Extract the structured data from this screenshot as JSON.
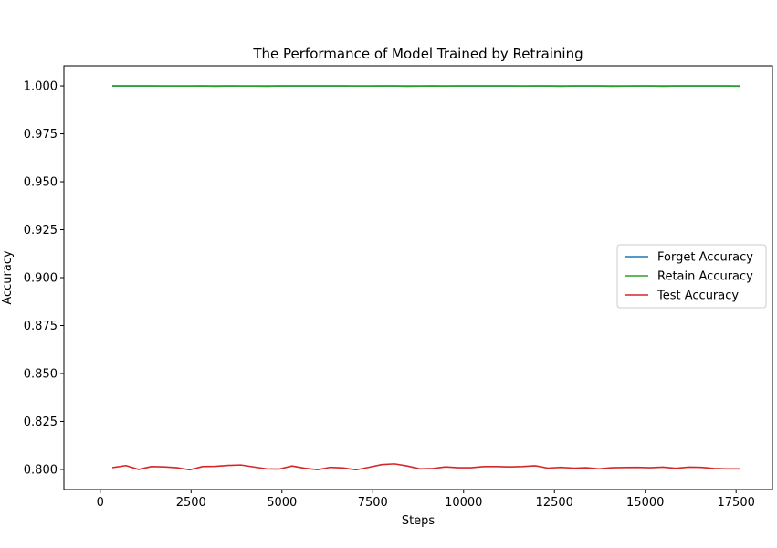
{
  "chart_data": {
    "type": "line",
    "title": "The Performance of Model Trained by Retraining",
    "xlabel": "Steps",
    "ylabel": "Accuracy",
    "xlim": [
      -1000,
      18500
    ],
    "ylim": [
      0.7895,
      1.0105
    ],
    "xticks": [
      0,
      2500,
      5000,
      7500,
      10000,
      12500,
      15000,
      17500
    ],
    "xtick_labels": [
      "0",
      "2500",
      "5000",
      "7500",
      "10000",
      "12500",
      "15000",
      "17500"
    ],
    "yticks": [
      0.8,
      0.825,
      0.85,
      0.875,
      0.9,
      0.925,
      0.95,
      0.975,
      1.0
    ],
    "ytick_labels": [
      "0.800",
      "0.825",
      "0.850",
      "0.875",
      "0.900",
      "0.925",
      "0.950",
      "0.975",
      "1.000"
    ],
    "grid": false,
    "legend_position": "center-right",
    "x": [
      352,
      704,
      1056,
      1408,
      1760,
      2112,
      2464,
      2816,
      3168,
      3520,
      3872,
      4224,
      4576,
      4928,
      5280,
      5632,
      5984,
      6336,
      6688,
      7040,
      7392,
      7744,
      8096,
      8448,
      8800,
      9152,
      9504,
      9856,
      10208,
      10560,
      10912,
      11264,
      11616,
      11968,
      12320,
      12672,
      13024,
      13376,
      13728,
      14080,
      14432,
      14784,
      15136,
      15488,
      15840,
      16192,
      16544,
      16896,
      17248,
      17600
    ],
    "series": [
      {
        "name": "Forget Accuracy",
        "color": "#1f77b4",
        "values": [
          1.0,
          1.0,
          1.0,
          1.0,
          1.0,
          1.0,
          1.0,
          1.0,
          1.0,
          1.0,
          1.0,
          1.0,
          1.0,
          1.0,
          1.0,
          1.0,
          1.0,
          1.0,
          1.0,
          1.0,
          1.0,
          1.0,
          1.0,
          1.0,
          1.0,
          1.0,
          1.0,
          1.0,
          1.0,
          1.0,
          1.0,
          1.0,
          1.0,
          1.0,
          1.0,
          1.0,
          1.0,
          1.0,
          1.0,
          1.0,
          1.0,
          1.0,
          1.0,
          1.0,
          1.0,
          1.0,
          1.0,
          1.0,
          1.0,
          1.0
        ]
      },
      {
        "name": "Retain Accuracy",
        "color": "#2ca02c",
        "values": [
          1.0,
          1.0,
          1.0,
          1.0,
          0.9999,
          0.9999,
          0.9999,
          1.0,
          0.9998,
          1.0,
          0.9999,
          0.9999,
          0.9998,
          1.0,
          1.0,
          1.0,
          1.0,
          1.0,
          1.0,
          0.9999,
          0.9999,
          1.0,
          1.0,
          0.9998,
          0.9999,
          1.0,
          0.9999,
          1.0,
          1.0,
          1.0,
          1.0,
          1.0,
          0.9999,
          1.0,
          1.0,
          0.9998,
          1.0,
          1.0,
          1.0,
          0.9998,
          0.9999,
          1.0,
          1.0,
          0.9998,
          1.0,
          1.0,
          1.0,
          1.0,
          1.0,
          0.9998
        ]
      },
      {
        "name": "Test Accuracy",
        "color": "#d62728",
        "values": [
          0.801,
          0.802,
          0.8,
          0.8015,
          0.8013,
          0.8009,
          0.7998,
          0.8015,
          0.8016,
          0.8021,
          0.8023,
          0.8013,
          0.8003,
          0.8002,
          0.8018,
          0.8006,
          0.7999,
          0.8011,
          0.8008,
          0.7998,
          0.8011,
          0.8025,
          0.8029,
          0.8018,
          0.8003,
          0.8005,
          0.8013,
          0.8009,
          0.8009,
          0.8015,
          0.8015,
          0.8013,
          0.8015,
          0.8019,
          0.8007,
          0.8011,
          0.8007,
          0.8009,
          0.8003,
          0.8009,
          0.801,
          0.8011,
          0.8009,
          0.8012,
          0.8006,
          0.8012,
          0.8011,
          0.8005,
          0.8003,
          0.8003
        ]
      }
    ]
  }
}
